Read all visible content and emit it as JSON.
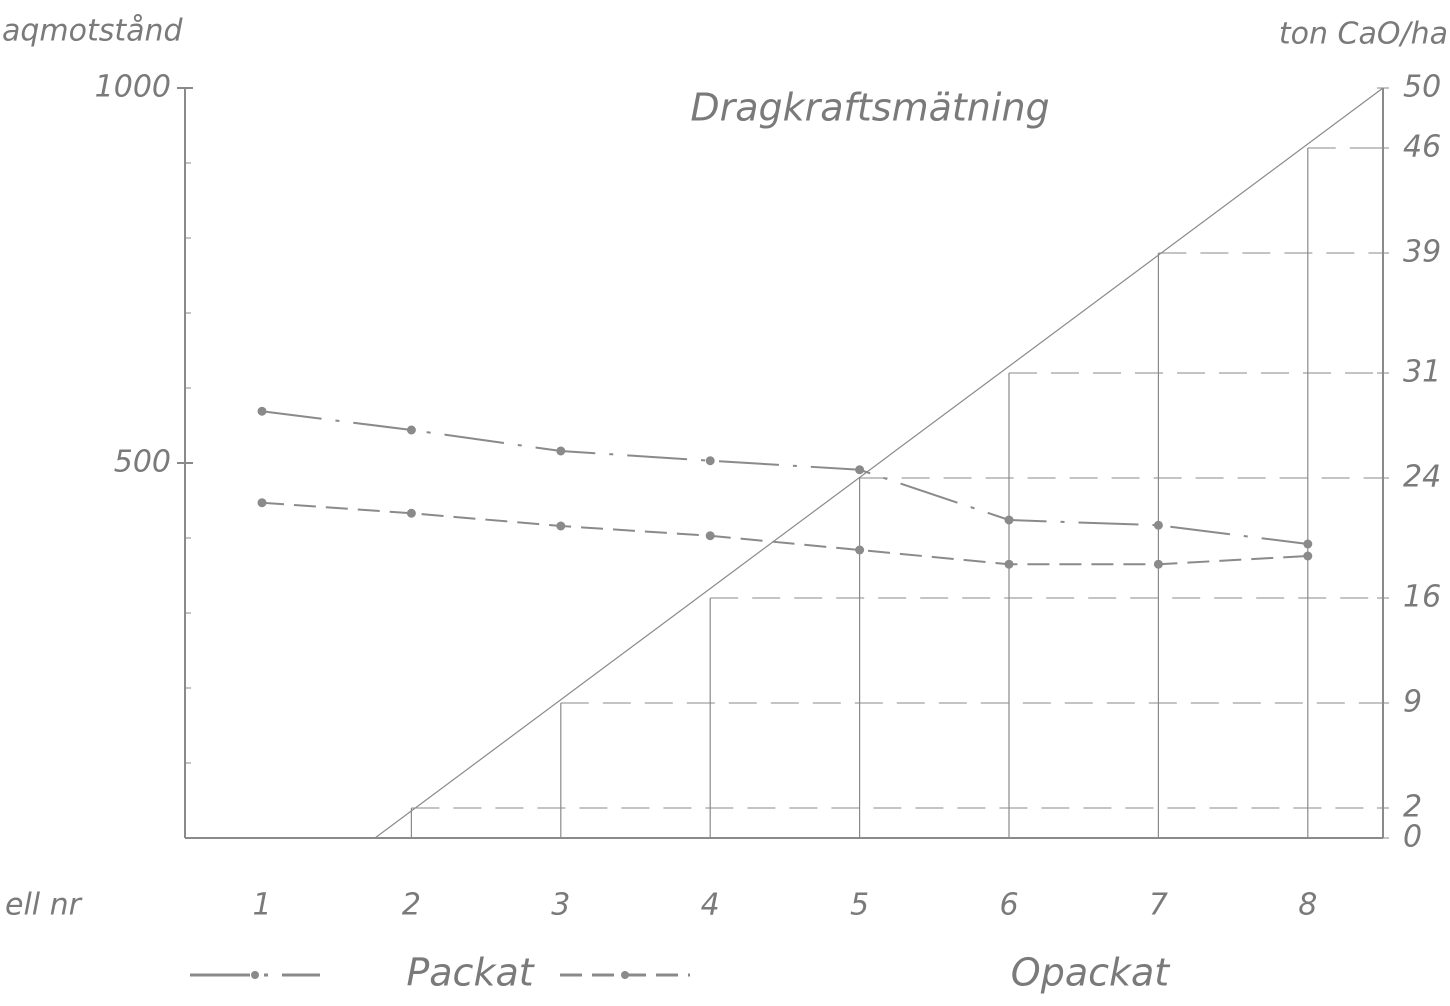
{
  "chart_data": {
    "type": "line",
    "title": "Dragkraftsmätning",
    "ylabel": "aqmotstånd",
    "y2label": "ton CaO/ha",
    "xlabel": "ell nr",
    "categories": [
      "1",
      "2",
      "3",
      "4",
      "5",
      "6",
      "7",
      "8"
    ],
    "series": [
      {
        "name": "Packat",
        "color": "#8a8a8a",
        "values": [
          569,
          544,
          516,
          503,
          491,
          424,
          417,
          392
        ]
      },
      {
        "name": "Opackat",
        "color": "#8a8a8a",
        "values": [
          447,
          433,
          416,
          403,
          384,
          365,
          365,
          376
        ]
      }
    ],
    "lime_dose": [
      0,
      2,
      9,
      16,
      24,
      31,
      39,
      46
    ],
    "ylim": [
      0,
      1000
    ],
    "yticks": [
      500,
      1000
    ],
    "y2lim": [
      0,
      50
    ],
    "y2ticks": [
      0,
      2,
      9,
      16,
      24,
      31,
      39,
      46,
      50
    ]
  }
}
